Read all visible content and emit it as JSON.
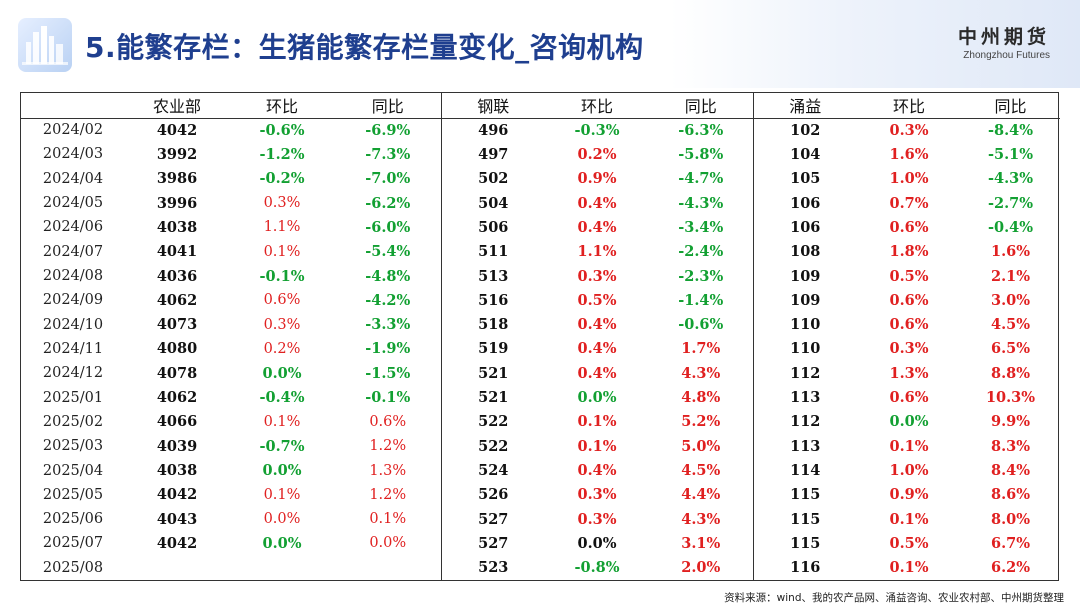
{
  "header": {
    "title": "5.能繁存栏：生猪能繁存栏量变化_咨询机构",
    "brand_cn": "中州期货",
    "brand_en": "Zhongzhou Futures"
  },
  "table": {
    "columns": [
      "",
      "农业部",
      "环比",
      "同比",
      "钢联",
      "环比",
      "同比",
      "涌益",
      "环比",
      "同比"
    ],
    "rows": [
      [
        "2024/02",
        "4042",
        "-0.6%",
        "-6.9%",
        "496",
        "-0.3%",
        "-6.3%",
        "102",
        "0.3%",
        "-8.4%"
      ],
      [
        "2024/03",
        "3992",
        "-1.2%",
        "-7.3%",
        "497",
        "0.2%",
        "-5.8%",
        "104",
        "1.6%",
        "-5.1%"
      ],
      [
        "2024/04",
        "3986",
        "-0.2%",
        "-7.0%",
        "502",
        "0.9%",
        "-4.7%",
        "105",
        "1.0%",
        "-4.3%"
      ],
      [
        "2024/05",
        "3996",
        "0.3%",
        "-6.2%",
        "504",
        "0.4%",
        "-4.3%",
        "106",
        "0.7%",
        "-2.7%"
      ],
      [
        "2024/06",
        "4038",
        "1.1%",
        "-6.0%",
        "506",
        "0.4%",
        "-3.4%",
        "106",
        "0.6%",
        "-0.4%"
      ],
      [
        "2024/07",
        "4041",
        "0.1%",
        "-5.4%",
        "511",
        "1.1%",
        "-2.4%",
        "108",
        "1.8%",
        "1.6%"
      ],
      [
        "2024/08",
        "4036",
        "-0.1%",
        "-4.8%",
        "513",
        "0.3%",
        "-2.3%",
        "109",
        "0.5%",
        "2.1%"
      ],
      [
        "2024/09",
        "4062",
        "0.6%",
        "-4.2%",
        "516",
        "0.5%",
        "-1.4%",
        "109",
        "0.6%",
        "3.0%"
      ],
      [
        "2024/10",
        "4073",
        "0.3%",
        "-3.3%",
        "518",
        "0.4%",
        "-0.6%",
        "110",
        "0.6%",
        "4.5%"
      ],
      [
        "2024/11",
        "4080",
        "0.2%",
        "-1.9%",
        "519",
        "0.4%",
        "1.7%",
        "110",
        "0.3%",
        "6.5%"
      ],
      [
        "2024/12",
        "4078",
        "0.0%",
        "-1.5%",
        "521",
        "0.4%",
        "4.3%",
        "112",
        "1.3%",
        "8.8%"
      ],
      [
        "2025/01",
        "4062",
        "-0.4%",
        "-0.1%",
        "521",
        "0.0%",
        "4.8%",
        "113",
        "0.6%",
        "10.3%"
      ],
      [
        "2025/02",
        "4066",
        "0.1%",
        "0.6%",
        "522",
        "0.1%",
        "5.2%",
        "112",
        "0.0%",
        "9.9%"
      ],
      [
        "2025/03",
        "4039",
        "-0.7%",
        "1.2%",
        "522",
        "0.1%",
        "5.0%",
        "113",
        "0.1%",
        "8.3%"
      ],
      [
        "2025/04",
        "4038",
        "0.0%",
        "1.3%",
        "524",
        "0.4%",
        "4.5%",
        "114",
        "1.0%",
        "8.4%"
      ],
      [
        "2025/05",
        "4042",
        "0.1%",
        "1.2%",
        "526",
        "0.3%",
        "4.4%",
        "115",
        "0.9%",
        "8.6%"
      ],
      [
        "2025/06",
        "4043",
        "0.0%",
        "0.1%",
        "527",
        "0.3%",
        "4.3%",
        "115",
        "0.1%",
        "8.0%"
      ],
      [
        "2025/07",
        "4042",
        "0.0%",
        "0.0%",
        "527",
        "0.0%",
        "3.1%",
        "115",
        "0.5%",
        "6.7%"
      ],
      [
        "2025/08",
        "",
        "",
        "",
        "523",
        "-0.8%",
        "2.0%",
        "116",
        "0.1%",
        "6.2%"
      ]
    ],
    "cell_colors": [
      [
        "",
        "",
        "neg",
        "neg",
        "",
        "neg",
        "neg",
        "",
        "pos",
        "neg"
      ],
      [
        "",
        "",
        "neg",
        "neg",
        "",
        "pos",
        "neg",
        "",
        "pos",
        "neg"
      ],
      [
        "",
        "",
        "neg",
        "neg",
        "",
        "pos",
        "neg",
        "",
        "pos",
        "neg"
      ],
      [
        "",
        "",
        "pos-n",
        "neg",
        "",
        "pos",
        "neg",
        "",
        "pos",
        "neg"
      ],
      [
        "",
        "",
        "pos-n",
        "neg",
        "",
        "pos",
        "neg",
        "",
        "pos",
        "neg"
      ],
      [
        "",
        "",
        "pos-n",
        "neg",
        "",
        "pos",
        "neg",
        "",
        "pos",
        "pos"
      ],
      [
        "",
        "",
        "neg",
        "neg",
        "",
        "pos",
        "neg",
        "",
        "pos",
        "pos"
      ],
      [
        "",
        "",
        "pos-n",
        "neg",
        "",
        "pos",
        "neg",
        "",
        "pos",
        "pos"
      ],
      [
        "",
        "",
        "pos-n",
        "neg",
        "",
        "pos",
        "neg",
        "",
        "pos",
        "pos"
      ],
      [
        "",
        "",
        "pos-n",
        "neg",
        "",
        "pos",
        "pos",
        "",
        "pos",
        "pos"
      ],
      [
        "",
        "",
        "neg",
        "neg",
        "",
        "pos",
        "pos",
        "",
        "pos",
        "pos"
      ],
      [
        "",
        "",
        "neg",
        "neg",
        "",
        "neg",
        "pos",
        "",
        "pos",
        "pos"
      ],
      [
        "",
        "",
        "pos-n",
        "pos-n",
        "",
        "pos",
        "pos",
        "",
        "neg",
        "pos"
      ],
      [
        "",
        "",
        "neg",
        "pos-n",
        "",
        "pos",
        "pos",
        "",
        "pos",
        "pos"
      ],
      [
        "",
        "",
        "neg",
        "pos-n",
        "",
        "pos",
        "pos",
        "",
        "pos",
        "pos"
      ],
      [
        "",
        "",
        "pos-n",
        "pos-n",
        "",
        "pos",
        "pos",
        "",
        "pos",
        "pos"
      ],
      [
        "",
        "",
        "pos-n",
        "pos-n",
        "",
        "pos",
        "pos",
        "",
        "pos",
        "pos"
      ],
      [
        "",
        "",
        "neg",
        "pos-n",
        "",
        "blk",
        "pos",
        "",
        "pos",
        "pos"
      ],
      [
        "",
        "",
        "",
        "",
        "",
        "neg",
        "pos",
        "",
        "pos",
        "pos"
      ]
    ]
  },
  "source": "资料来源：wind、我的农产品网、涌益咨询、农业农村部、中州期货整理",
  "colors": {
    "title": "#1f3f8f",
    "positive": "#e02020",
    "negative": "#12a032"
  }
}
